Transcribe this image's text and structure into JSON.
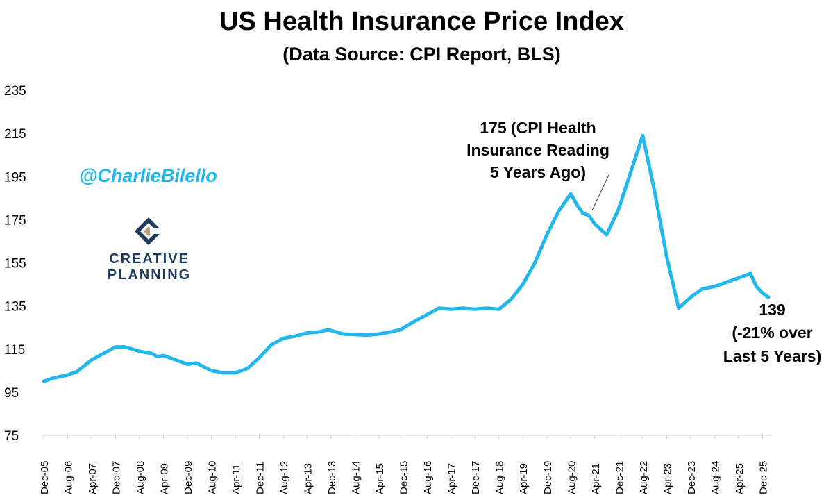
{
  "header": {
    "title": "US Health Insurance Price Index",
    "subtitle": "(Data Source: CPI Report, BLS)"
  },
  "branding": {
    "handle": "@CharlieBilello",
    "logo_line1": "CREATIVE",
    "logo_line2": "PLANNING"
  },
  "annotations": {
    "peak_line1": "175 (CPI Health",
    "peak_line2": "Insurance Reading",
    "peak_line3": "5 Years Ago)",
    "end_line1": "139",
    "end_line2": "(-21% over",
    "end_line3": "Last 5 Years)"
  },
  "colors": {
    "series": "#22B8EE",
    "handle": "#22B8EE",
    "logo_text": "#1d3b5c",
    "logo_accent": "#b9a47a"
  },
  "chart_data": {
    "type": "line",
    "title": "US Health Insurance Price Index",
    "subtitle": "(Data Source: CPI Report, BLS)",
    "xlabel": "",
    "ylabel": "",
    "ylim": [
      75,
      235
    ],
    "yticks": [
      75,
      95,
      115,
      135,
      155,
      175,
      195,
      215,
      235
    ],
    "grid": false,
    "legend": "none",
    "xtick_labels": [
      "Dec-05",
      "Aug-06",
      "Apr-07",
      "Dec-07",
      "Aug-08",
      "Apr-09",
      "Dec-09",
      "Aug-10",
      "Apr-11",
      "Dec-11",
      "Aug-12",
      "Apr-13",
      "Dec-13",
      "Aug-14",
      "Apr-15",
      "Dec-15",
      "Aug-16",
      "Apr-17",
      "Dec-17",
      "Aug-18",
      "Apr-19",
      "Dec-19",
      "Aug-20",
      "Apr-21",
      "Dec-21",
      "Aug-22",
      "Apr-23",
      "Dec-23",
      "Aug-24",
      "Apr-25",
      "Dec-25"
    ],
    "series": [
      {
        "points": [
          [
            "Dec-05",
            100
          ],
          [
            "Mar-06",
            101.5
          ],
          [
            "Aug-06",
            103
          ],
          [
            "Nov-06",
            104.5
          ],
          [
            "Apr-07",
            110
          ],
          [
            "Aug-07",
            113
          ],
          [
            "Dec-07",
            116
          ],
          [
            "Mar-08",
            116
          ],
          [
            "Aug-08",
            114
          ],
          [
            "Dec-08",
            113
          ],
          [
            "Feb-09",
            111.5
          ],
          [
            "Apr-09",
            112
          ],
          [
            "Aug-09",
            110
          ],
          [
            "Dec-09",
            108
          ],
          [
            "Mar-10",
            108.5
          ],
          [
            "Aug-10",
            105
          ],
          [
            "Dec-10",
            104
          ],
          [
            "Apr-11",
            104
          ],
          [
            "Aug-11",
            106
          ],
          [
            "Dec-11",
            111
          ],
          [
            "Apr-12",
            117
          ],
          [
            "Aug-12",
            120
          ],
          [
            "Dec-12",
            121
          ],
          [
            "Apr-13",
            122.5
          ],
          [
            "Aug-13",
            123
          ],
          [
            "Nov-13",
            124
          ],
          [
            "Apr-14",
            122
          ],
          [
            "Dec-14",
            121.5
          ],
          [
            "Apr-15",
            122
          ],
          [
            "Aug-15",
            123
          ],
          [
            "Nov-15",
            124
          ],
          [
            "Apr-16",
            128
          ],
          [
            "Aug-16",
            131
          ],
          [
            "Dec-16",
            134
          ],
          [
            "Apr-17",
            133.5
          ],
          [
            "Aug-17",
            134
          ],
          [
            "Dec-17",
            133.5
          ],
          [
            "Apr-18",
            134
          ],
          [
            "Aug-18",
            133.5
          ],
          [
            "Dec-18",
            138
          ],
          [
            "Apr-19",
            145
          ],
          [
            "Aug-19",
            155
          ],
          [
            "Dec-19",
            168
          ],
          [
            "Apr-20",
            179
          ],
          [
            "Aug-20",
            187
          ],
          [
            "Oct-20",
            182
          ],
          [
            "Dec-20",
            178
          ],
          [
            "Feb-21",
            177
          ],
          [
            "Apr-21",
            173
          ],
          [
            "Aug-21",
            168
          ],
          [
            "Dec-21",
            180
          ],
          [
            "Apr-22",
            197
          ],
          [
            "Aug-22",
            214
          ],
          [
            "Dec-22",
            188
          ],
          [
            "Apr-23",
            158
          ],
          [
            "Aug-23",
            134
          ],
          [
            "Dec-23",
            139
          ],
          [
            "Apr-24",
            143
          ],
          [
            "Aug-24",
            144
          ],
          [
            "Dec-24",
            146
          ],
          [
            "Apr-25",
            148
          ],
          [
            "Aug-25",
            150
          ],
          [
            "Oct-25",
            144
          ],
          [
            "Dec-25",
            141
          ],
          [
            "Feb-26",
            139
          ]
        ]
      }
    ]
  }
}
